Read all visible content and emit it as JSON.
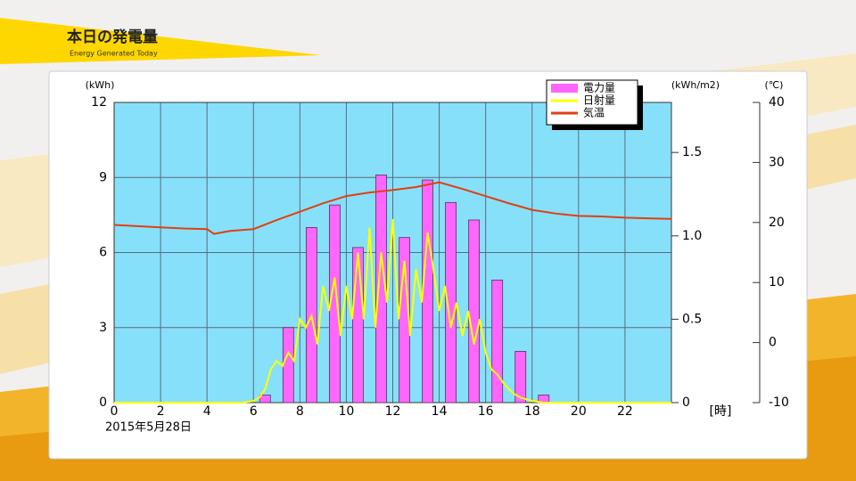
{
  "header": {
    "title": "本日の発電量",
    "subtitle": "Energy Generated Today"
  },
  "chart_data": {
    "type": "combo",
    "date_label": "2015年5月28日",
    "x_label": "[時]",
    "y_label": "(kWh)",
    "y2_label": "(kWh/m2)",
    "y3_label": "(℃)",
    "xlim": [
      0,
      24
    ],
    "xticks": [
      0,
      2,
      4,
      6,
      8,
      10,
      12,
      14,
      16,
      18,
      20,
      22
    ],
    "ylim": [
      0,
      12
    ],
    "yticks": [
      0,
      3,
      6,
      9,
      12
    ],
    "y2lim": [
      0,
      1.8
    ],
    "y2ticks": [
      0,
      {
        "value": 0.5,
        "label": "0.5"
      },
      {
        "value": 1,
        "label": "1.0"
      },
      {
        "value": 1.5,
        "label": "1.5"
      }
    ],
    "y3lim": [
      -10,
      40
    ],
    "y3ticks": [
      -10,
      0,
      10,
      20,
      30,
      40
    ],
    "grid": true,
    "legend": "top-right",
    "series": [
      {
        "name": "電力量",
        "type": "bar",
        "color": "#ff66ff",
        "x": [
          6.5,
          7.5,
          8.5,
          9.5,
          10.5,
          11.5,
          12.5,
          13.5,
          14.5,
          15.5,
          16.5,
          17.5,
          18.5
        ],
        "values": [
          0.3,
          3.0,
          7.0,
          7.9,
          6.2,
          9.1,
          6.6,
          8.9,
          8.0,
          7.3,
          4.9,
          2.05,
          0.3
        ]
      },
      {
        "name": "日射量",
        "type": "line",
        "axis": "y2",
        "color": "#ffff00",
        "x": [
          0,
          5.5,
          6,
          6.25,
          6.5,
          6.75,
          7,
          7.25,
          7.5,
          7.75,
          8,
          8.25,
          8.5,
          8.75,
          9,
          9.25,
          9.5,
          9.75,
          10,
          10.25,
          10.5,
          10.75,
          11,
          11.25,
          11.5,
          11.75,
          12,
          12.25,
          12.5,
          12.75,
          13,
          13.25,
          13.5,
          13.75,
          14,
          14.25,
          14.5,
          14.75,
          15,
          15.25,
          15.5,
          15.75,
          16,
          16.25,
          16.5,
          16.75,
          17,
          17.25,
          17.5,
          18,
          18.5,
          24
        ],
        "values": [
          0,
          0,
          0.01,
          0.03,
          0.08,
          0.2,
          0.25,
          0.22,
          0.3,
          0.25,
          0.5,
          0.45,
          0.52,
          0.35,
          0.7,
          0.55,
          0.75,
          0.4,
          0.7,
          0.5,
          0.9,
          0.5,
          1.05,
          0.45,
          0.9,
          0.6,
          1.1,
          0.5,
          0.85,
          0.4,
          0.8,
          0.6,
          1.02,
          0.8,
          0.55,
          0.7,
          0.45,
          0.6,
          0.4,
          0.55,
          0.35,
          0.5,
          0.3,
          0.2,
          0.17,
          0.12,
          0.08,
          0.05,
          0.03,
          0.01,
          0,
          0
        ]
      },
      {
        "name": "気温",
        "type": "line",
        "axis": "y3",
        "color": "#e04010",
        "x": [
          0,
          1,
          2,
          3,
          4,
          4.3,
          5,
          6,
          7,
          8,
          9,
          10,
          11,
          12,
          13,
          14,
          15,
          16,
          17,
          18,
          19,
          20,
          21,
          22,
          23,
          24
        ],
        "values": [
          19.6,
          19.4,
          19.2,
          19.0,
          18.9,
          18.1,
          18.6,
          18.9,
          20.4,
          21.8,
          23.2,
          24.4,
          25.0,
          25.4,
          25.9,
          26.7,
          25.6,
          24.4,
          23.2,
          22.1,
          21.5,
          21.1,
          21.0,
          20.8,
          20.7,
          20.6
        ]
      }
    ]
  }
}
